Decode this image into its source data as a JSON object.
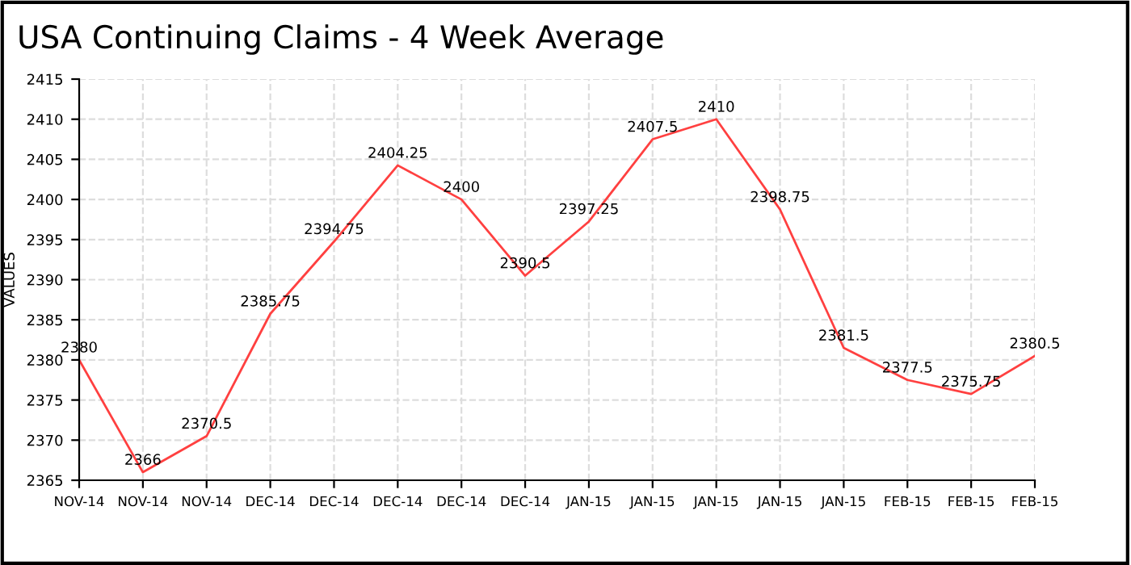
{
  "chart_data": {
    "type": "line",
    "title": "USA Continuing Claims - 4 Week Average",
    "ylabel": "VALUES",
    "categories": [
      "NOV-14",
      "NOV-14",
      "NOV-14",
      "DEC-14",
      "DEC-14",
      "DEC-14",
      "DEC-14",
      "DEC-14",
      "JAN-15",
      "JAN-15",
      "JAN-15",
      "JAN-15",
      "JAN-15",
      "FEB-15",
      "FEB-15",
      "FEB-15"
    ],
    "series": [
      {
        "color": "#ff4040",
        "values": [
          2380,
          2366,
          2370.5,
          2385.75,
          2394.75,
          2404.25,
          2400,
          2390.5,
          2397.25,
          2407.5,
          2410,
          2398.75,
          2381.5,
          2377.5,
          2375.75,
          2380.5
        ]
      }
    ],
    "ylim": [
      2365,
      2415
    ],
    "yticks": [
      2365,
      2370,
      2375,
      2380,
      2385,
      2390,
      2395,
      2400,
      2405,
      2410,
      2415
    ],
    "grid": true,
    "data_labels": true,
    "marker": "none",
    "line_style": "solid"
  }
}
